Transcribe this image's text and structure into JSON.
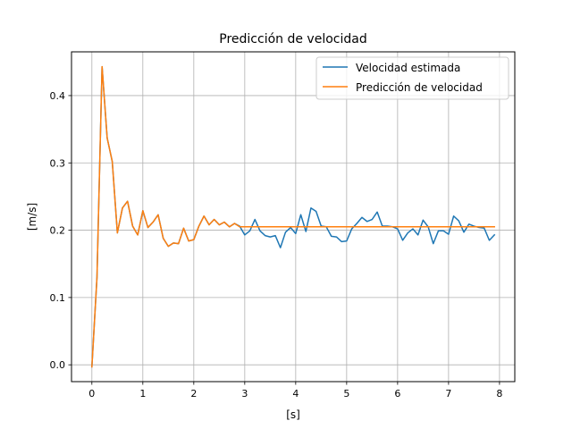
{
  "chart_data": {
    "type": "line",
    "title": "Predicción de velocidad",
    "xlabel": "[s]",
    "ylabel": "[m/s]",
    "xlim": [
      -0.4,
      8.3
    ],
    "ylim": [
      -0.025,
      0.465
    ],
    "xticks": [
      0,
      1,
      2,
      3,
      4,
      5,
      6,
      7,
      8
    ],
    "yticks": [
      0.0,
      0.1,
      0.2,
      0.3,
      0.4
    ],
    "ytick_labels": [
      "0.0",
      "0.1",
      "0.2",
      "0.3",
      "0.4"
    ],
    "grid": true,
    "legend": "top-right",
    "series": [
      {
        "name": "Velocidad estimada",
        "color": "#1f77b4",
        "x": [
          0.0,
          0.1,
          0.2,
          0.3,
          0.4,
          0.5,
          0.6,
          0.7,
          0.8,
          0.9,
          1.0,
          1.1,
          1.2,
          1.3,
          1.4,
          1.5,
          1.6,
          1.7,
          1.8,
          1.9,
          2.0,
          2.1,
          2.2,
          2.3,
          2.4,
          2.5,
          2.6,
          2.7,
          2.8,
          2.9,
          3.0,
          3.1,
          3.2,
          3.3,
          3.4,
          3.5,
          3.6,
          3.7,
          3.8,
          3.9,
          4.0,
          4.1,
          4.2,
          4.3,
          4.4,
          4.5,
          4.6,
          4.7,
          4.8,
          4.9,
          5.0,
          5.1,
          5.2,
          5.3,
          5.4,
          5.5,
          5.6,
          5.7,
          5.8,
          5.9,
          6.0,
          6.1,
          6.2,
          6.3,
          6.4,
          6.5,
          6.6,
          6.7,
          6.8,
          6.9,
          7.0,
          7.1,
          7.2,
          7.3,
          7.4,
          7.5,
          7.6,
          7.7,
          7.8,
          7.9
        ],
        "values": [
          -0.003,
          0.13,
          0.443,
          0.337,
          0.302,
          0.196,
          0.233,
          0.243,
          0.206,
          0.193,
          0.229,
          0.204,
          0.212,
          0.223,
          0.188,
          0.176,
          0.181,
          0.18,
          0.203,
          0.184,
          0.186,
          0.206,
          0.221,
          0.208,
          0.216,
          0.208,
          0.212,
          0.205,
          0.21,
          0.206,
          0.193,
          0.199,
          0.216,
          0.199,
          0.192,
          0.19,
          0.192,
          0.174,
          0.197,
          0.204,
          0.195,
          0.223,
          0.198,
          0.233,
          0.228,
          0.206,
          0.205,
          0.191,
          0.19,
          0.183,
          0.184,
          0.202,
          0.21,
          0.219,
          0.213,
          0.216,
          0.227,
          0.206,
          0.206,
          0.205,
          0.202,
          0.185,
          0.196,
          0.202,
          0.193,
          0.215,
          0.205,
          0.18,
          0.199,
          0.199,
          0.194,
          0.221,
          0.214,
          0.197,
          0.209,
          0.206,
          0.204,
          0.203,
          0.185,
          0.193
        ]
      },
      {
        "name": "Predicción de velocidad",
        "color": "#ff7f0e",
        "x": [
          0.0,
          0.1,
          0.2,
          0.3,
          0.4,
          0.5,
          0.6,
          0.7,
          0.8,
          0.9,
          1.0,
          1.1,
          1.2,
          1.3,
          1.4,
          1.5,
          1.6,
          1.7,
          1.8,
          1.9,
          2.0,
          2.1,
          2.2,
          2.3,
          2.4,
          2.5,
          2.6,
          2.7,
          2.8,
          2.9,
          7.9
        ],
        "values": [
          -0.003,
          0.13,
          0.443,
          0.337,
          0.302,
          0.196,
          0.233,
          0.243,
          0.206,
          0.193,
          0.229,
          0.204,
          0.212,
          0.223,
          0.188,
          0.176,
          0.181,
          0.18,
          0.203,
          0.184,
          0.186,
          0.206,
          0.221,
          0.208,
          0.216,
          0.208,
          0.212,
          0.205,
          0.21,
          0.205,
          0.205
        ]
      }
    ]
  }
}
